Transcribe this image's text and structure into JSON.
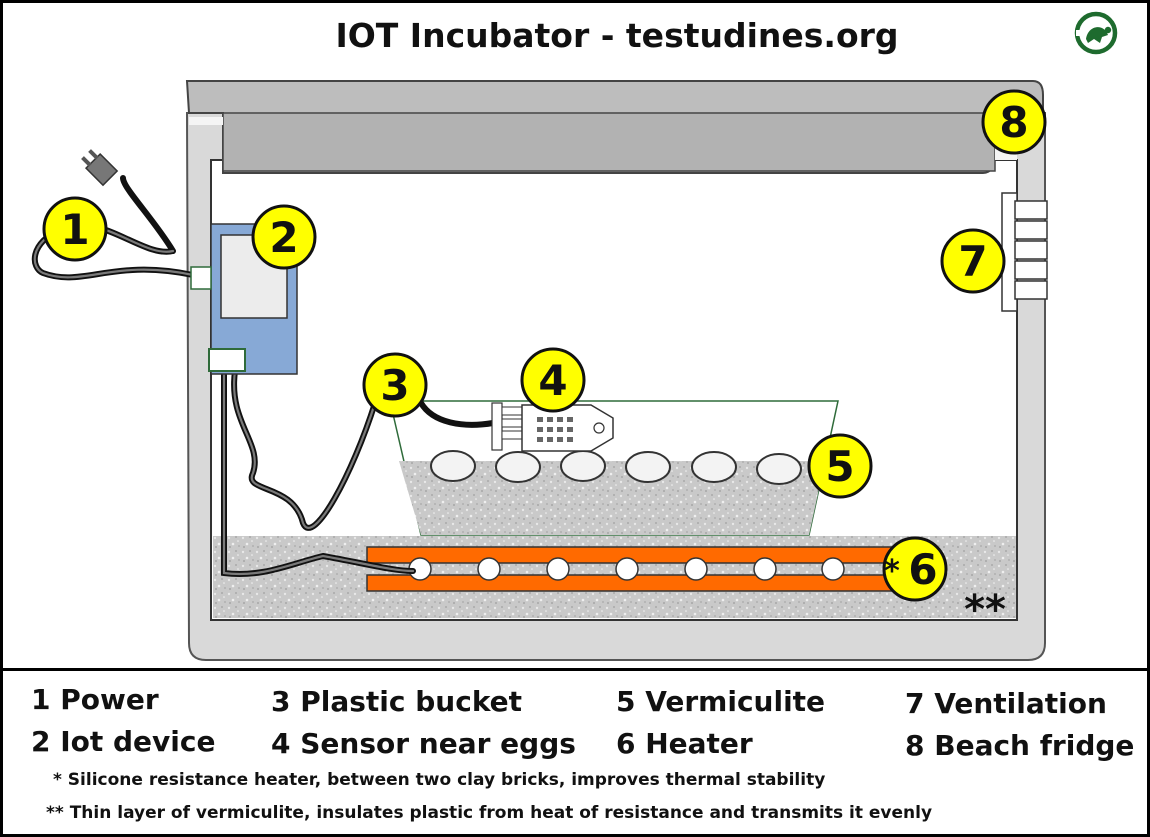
{
  "title": "IOT Incubator - testudines.org",
  "logo_icon": "turtle-logo-icon",
  "colors": {
    "callout_fill": "#ffff00",
    "heater": "#ff6a00",
    "device_board": "#87a9d6",
    "fridge_gray": "#d9d9d9",
    "vermiculite": "#c8c8c8",
    "logo_green": "#1e6b2e"
  },
  "callouts": [
    {
      "num": "1"
    },
    {
      "num": "2"
    },
    {
      "num": "3"
    },
    {
      "num": "4"
    },
    {
      "num": "5"
    },
    {
      "num": "6",
      "prefix": "*"
    },
    {
      "num": "7"
    },
    {
      "num": "8"
    }
  ],
  "bottom_marker": "**",
  "legend": {
    "items": [
      "1 Power",
      "2 Iot device",
      "3 Plastic bucket",
      "4 Sensor near eggs",
      "5 Vermiculite",
      "6 Heater",
      "7 Ventilation",
      "8 Beach fridge"
    ],
    "notes": [
      "*  Silicone resistance heater,  between two clay bricks, improves thermal stability",
      "** Thin layer of vermiculite, insulates plastic from heat of resistance and transmits it evenly"
    ]
  }
}
